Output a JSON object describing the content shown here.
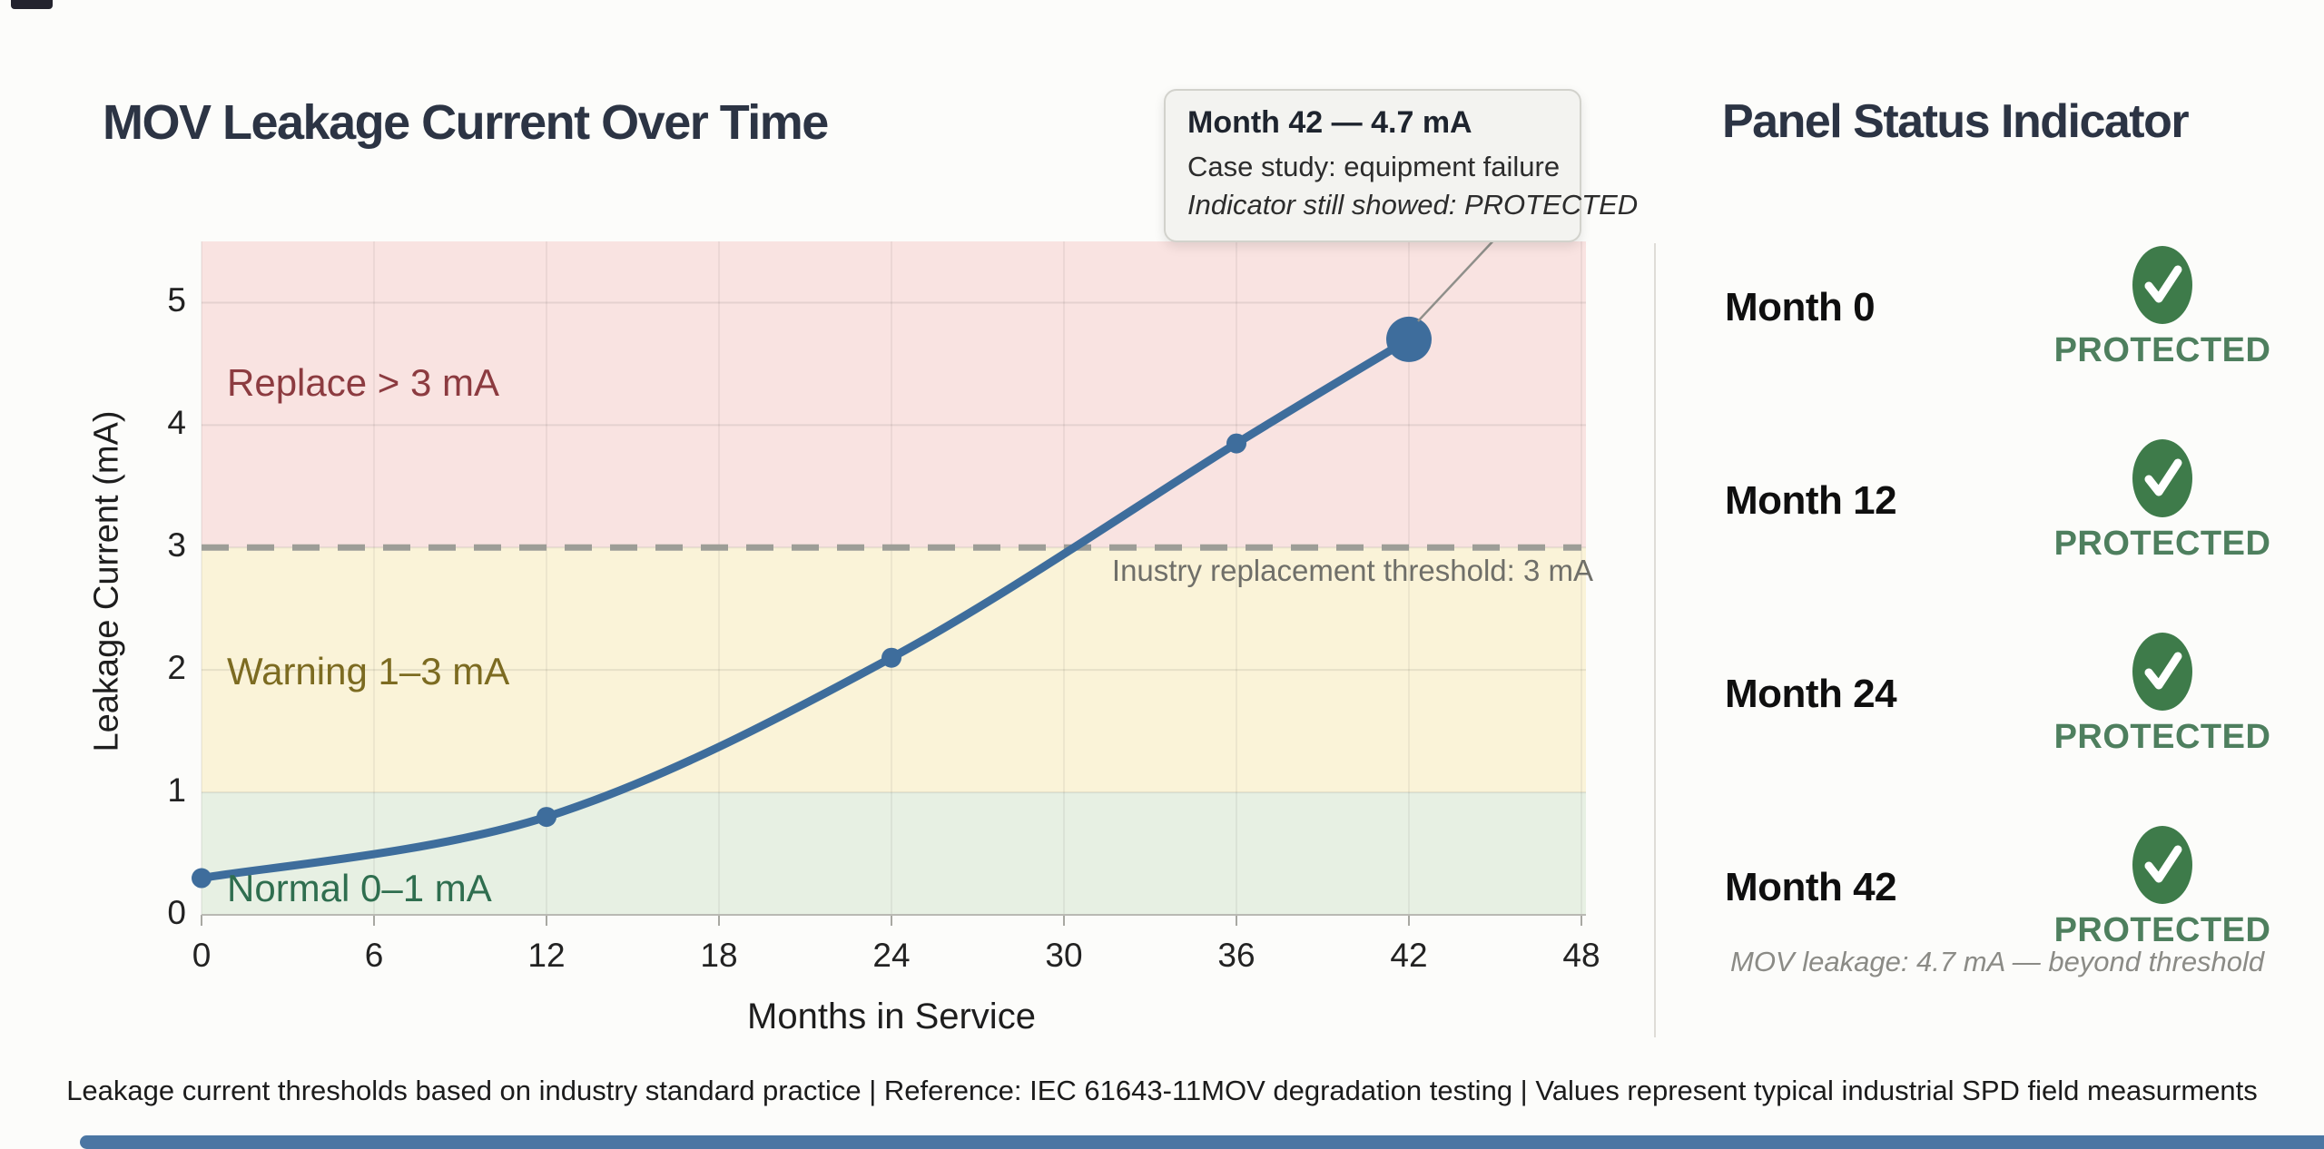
{
  "chart_data": {
    "type": "line",
    "title": "MOV Leakage Current Over Time",
    "xlabel": "Months in Service",
    "ylabel": "Leakage Current (mA)",
    "x": [
      0,
      12,
      24,
      36,
      42
    ],
    "y": [
      0.3,
      0.8,
      2.1,
      3.85,
      4.7
    ],
    "xlim": [
      0,
      48
    ],
    "ylim": [
      0,
      5.5
    ],
    "xticks": [
      0,
      6,
      12,
      18,
      24,
      30,
      36,
      42,
      48
    ],
    "yticks": [
      0,
      1,
      2,
      3,
      4,
      5
    ],
    "grid": true,
    "highlight_point": {
      "x": 42,
      "y": 4.7
    },
    "threshold_line": {
      "y": 3,
      "style": "dashed",
      "label": "Inustry replacement threshold: 3 mA"
    },
    "zones": [
      {
        "label": "Replace > 3 mA",
        "range": [
          3,
          5.5
        ],
        "bg": "#f9e3e1",
        "text_color": "#8c3b40"
      },
      {
        "label": "Warning 1–3 mA",
        "range": [
          1,
          3
        ],
        "bg": "#faf3d8",
        "text_color": "#7c6b21"
      },
      {
        "label": "Normal 0–1 mA",
        "range": [
          0,
          1
        ],
        "bg": "#e7f0e3",
        "text_color": "#2f6e4f"
      }
    ]
  },
  "tooltip": {
    "title": "Month 42 — 4.7 mA",
    "case_line": "Case study: equipment failure",
    "indicator_line": "Indicator still showed: PROTECTED"
  },
  "panel": {
    "title": "Panel Status Indicator",
    "rows": [
      {
        "month": "Month 0",
        "status": "PROTECTED"
      },
      {
        "month": "Month 12",
        "status": "PROTECTED"
      },
      {
        "month": "Month 24",
        "status": "PROTECTED"
      },
      {
        "month": "Month 42",
        "status": "PROTECTED"
      }
    ],
    "note": "MOV leakage: 4.7 mA — beyond threshold"
  },
  "footer": {
    "text": "Leakage current thresholds based on industry standard practice | Reference: IEC 61643-11MOV degradation testing | Values represent typical industrial SPD field measurments"
  },
  "colors": {
    "line_blue": "#3e6d9c",
    "badge_green": "#3e7b4a",
    "status_green": "#4e7f5e",
    "threshold_gray": "#9d9d97",
    "accent_bar_blue": "#4b76a3",
    "grid_gray": "#d9d7d1"
  }
}
